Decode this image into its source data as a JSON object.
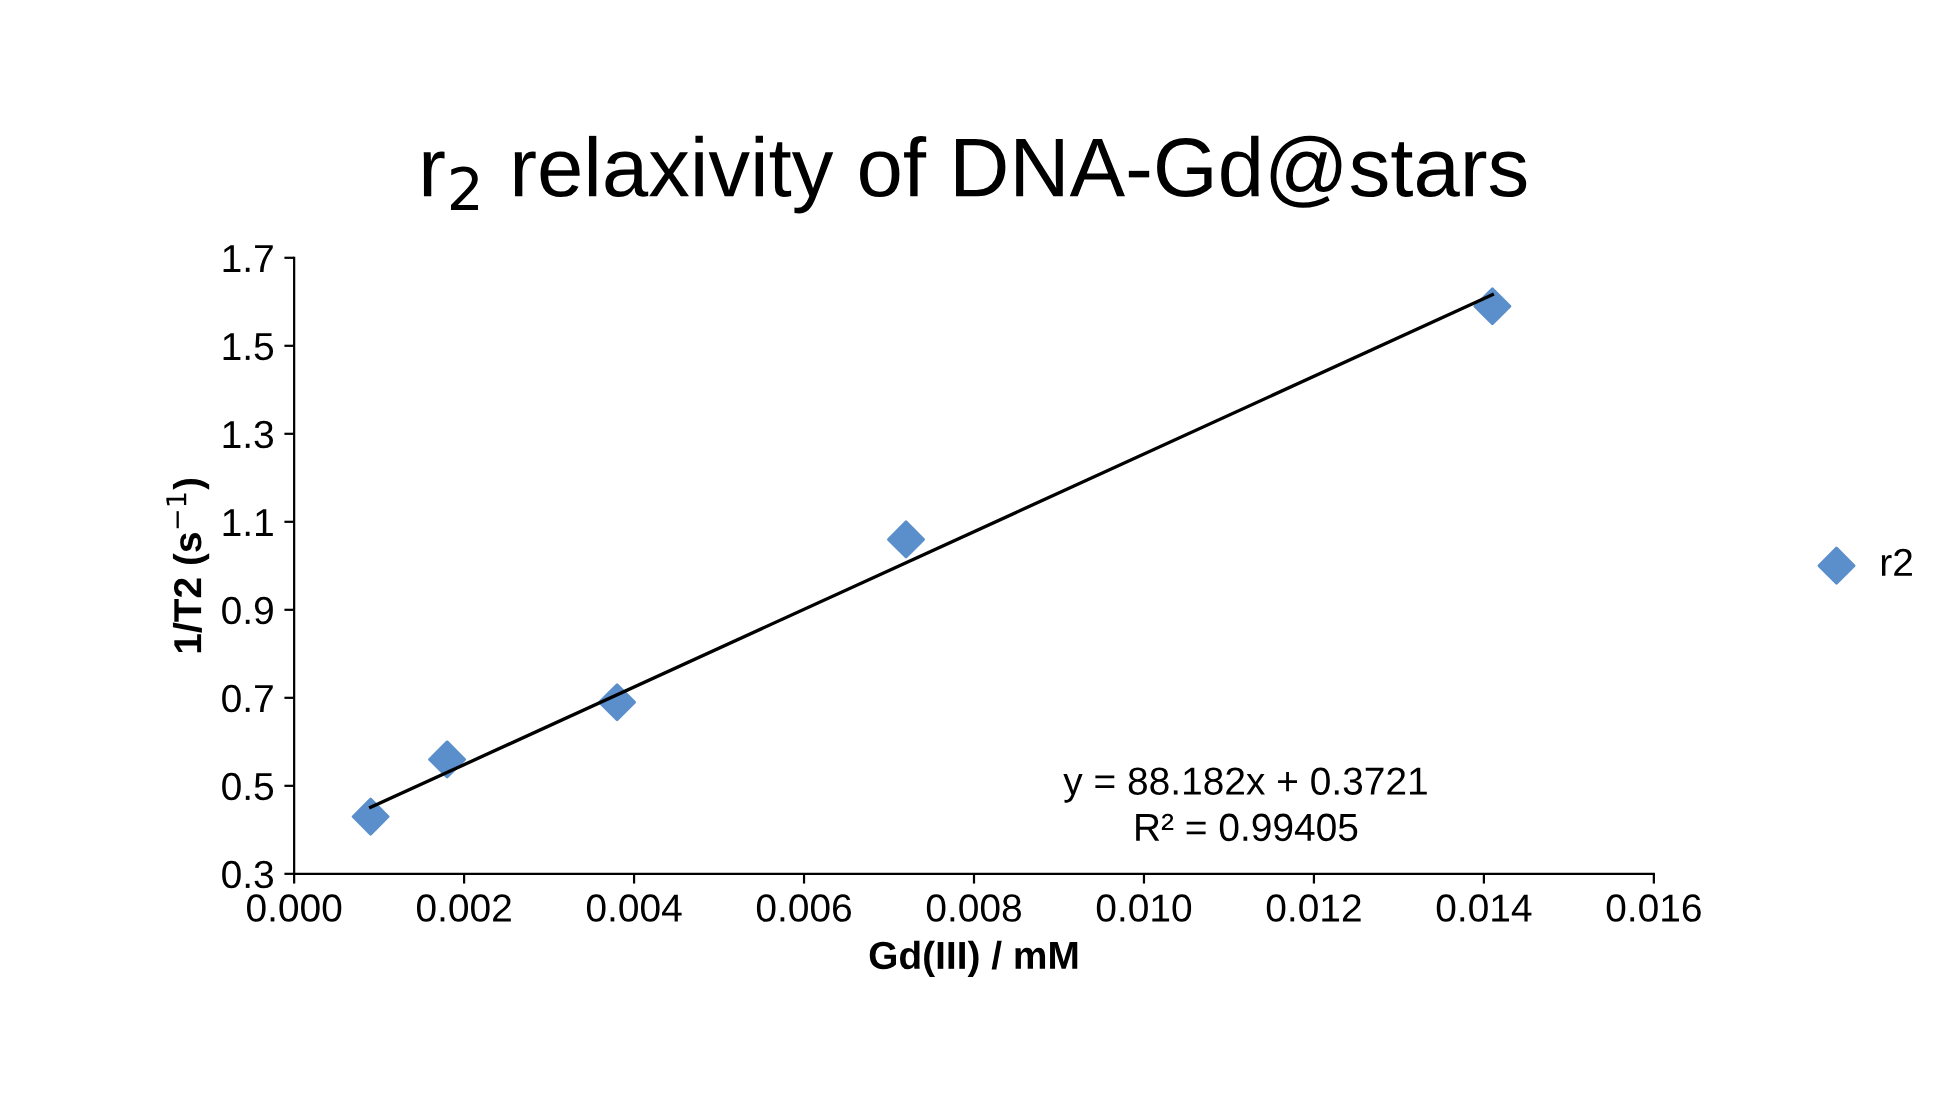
{
  "chart_data": {
    "type": "scatter",
    "title": "r$_{2}$ relaxivity of DNA-Gd@stars",
    "xlabel": "Gd(III) / mM",
    "ylabel": "1/T2 (s$^{−1}$)",
    "x": [
      0.0009,
      0.0018,
      0.0038,
      0.0072,
      0.0141
    ],
    "series": [
      {
        "name": "r2",
        "color": "#5b8fcc",
        "values": [
          0.43,
          0.56,
          0.69,
          1.06,
          1.59
        ],
        "marker": "diamond"
      },
      {
        "type": "line",
        "color": "#000000",
        "x": [
          0.0009,
          0.0141
        ],
        "values": [
          0.451,
          1.616
        ],
        "marker": "none"
      }
    ],
    "annotations": [
      "y = 88.182x + 0.3721",
      "R² = 0.99405"
    ],
    "xlim": [
      0,
      0.016
    ],
    "xticks": [
      {
        "value": 0,
        "label": "0.000"
      },
      {
        "value": 0.002,
        "label": "0.002"
      },
      {
        "value": 0.004,
        "label": "0.004"
      },
      {
        "value": 0.006,
        "label": "0.006"
      },
      {
        "value": 0.008,
        "label": "0.008"
      },
      {
        "value": 0.01,
        "label": "0.010"
      },
      {
        "value": 0.012,
        "label": "0.012"
      },
      {
        "value": 0.014,
        "label": "0.014"
      },
      {
        "value": 0.016,
        "label": "0.016"
      }
    ],
    "ylim": [
      0.3,
      1.7
    ],
    "yticks": [
      0.3,
      0.5,
      0.7,
      0.9,
      1.1,
      1.3,
      1.5,
      1.7
    ],
    "grid": false,
    "legend": "right"
  }
}
